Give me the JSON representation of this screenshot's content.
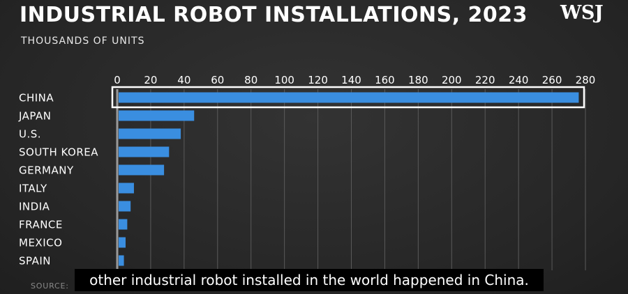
{
  "header": {
    "title": "INDUSTRIAL ROBOT INSTALLATIONS, 2023",
    "subtitle": "THOUSANDS OF UNITS",
    "logo": "WSJ"
  },
  "footer": {
    "source_label": "SOURCE:"
  },
  "subtitles": {
    "caption": "other industrial robot installed in the world happened in China."
  },
  "colors": {
    "bar": "#3a8ee0",
    "highlight_outline": "#ffffff",
    "text": "#ffffff",
    "grid": "#5a5a5a"
  },
  "chart_data": {
    "type": "bar",
    "orientation": "horizontal",
    "title": "INDUSTRIAL ROBOT INSTALLATIONS, 2023",
    "subtitle": "THOUSANDS OF UNITS",
    "categories": [
      "CHINA",
      "JAPAN",
      "U.S.",
      "SOUTH KOREA",
      "GERMANY",
      "ITALY",
      "INDIA",
      "FRANCE",
      "MEXICO",
      "SPAIN"
    ],
    "values": [
      276,
      46,
      38,
      31,
      28,
      10,
      8,
      6,
      5,
      4
    ],
    "xlim": [
      0,
      280
    ],
    "xticks": [
      0,
      20,
      40,
      60,
      80,
      100,
      120,
      140,
      160,
      180,
      200,
      220,
      240,
      260,
      280
    ],
    "x_axis_position": "top",
    "grid": true,
    "highlighted_category": "CHINA"
  }
}
